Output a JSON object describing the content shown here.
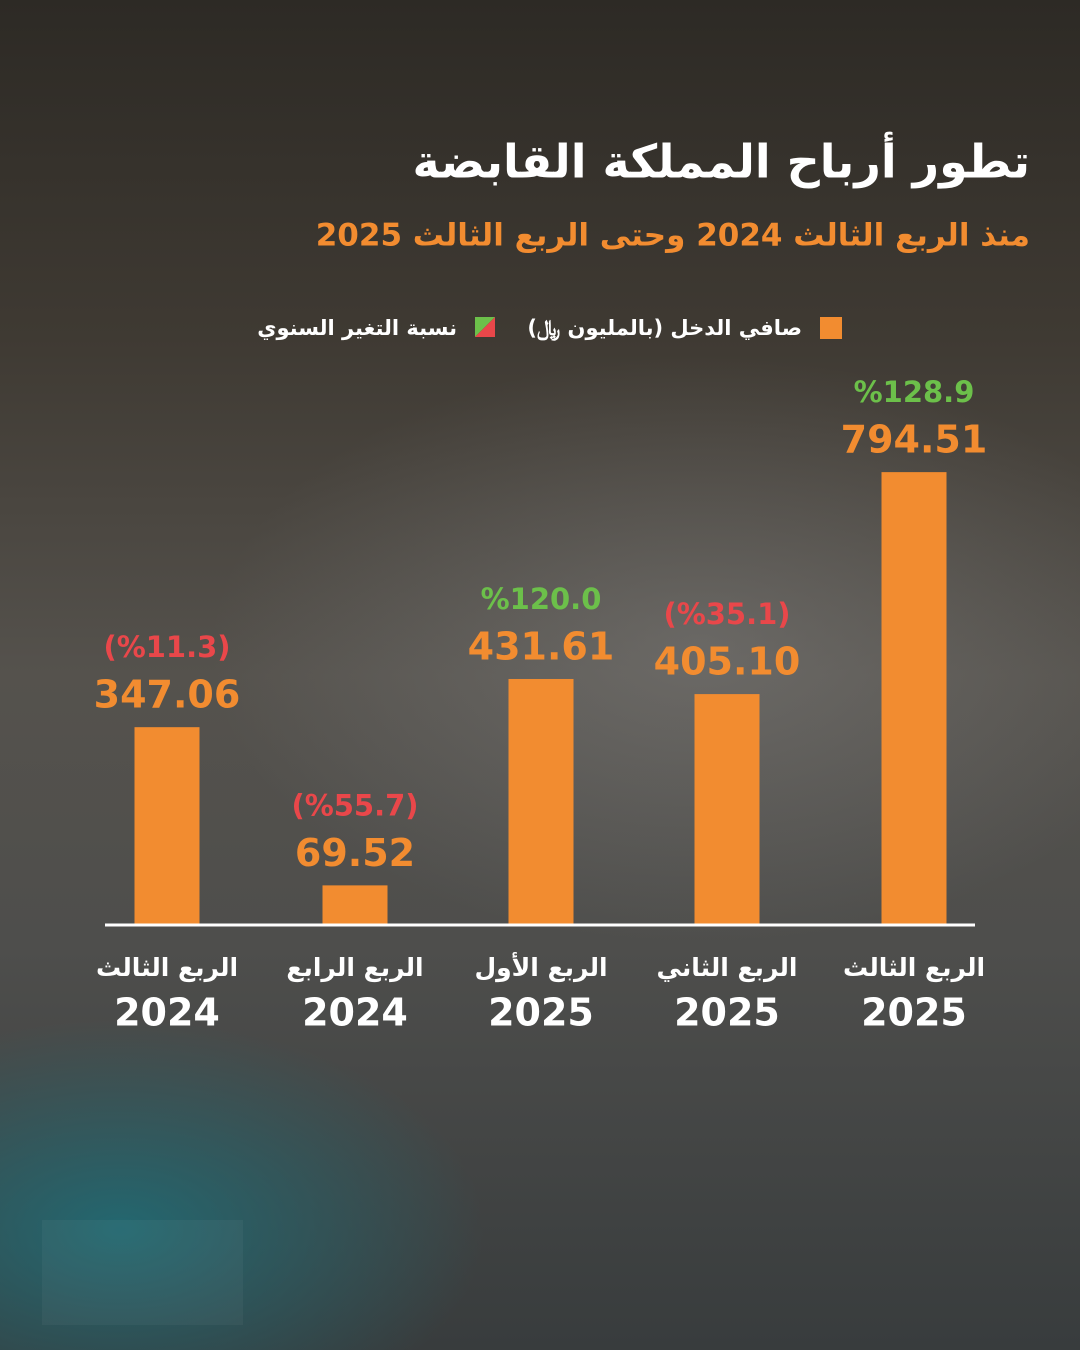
{
  "chart_data": {
    "type": "bar",
    "title": "تطور أرباح المملكة القابضة",
    "subtitle": "منذ الربع الثالث 2024 وحتى الربع الثالث 2025",
    "categories": [
      [
        "الربع الثالث",
        "2024"
      ],
      [
        "الربع الرابع",
        "2024"
      ],
      [
        "الربع الأول",
        "2025"
      ],
      [
        "الربع الثاني",
        "2025"
      ],
      [
        "الربع الثالث",
        "2025"
      ]
    ],
    "series": [
      {
        "name": "صافي الدخل (بالمليون ﷼)",
        "color": "#f28c30",
        "values": [
          347.06,
          69.52,
          431.61,
          405.1,
          794.51
        ],
        "value_labels": [
          "347.06",
          "69.52",
          "431.61",
          "405.10",
          "794.51"
        ]
      },
      {
        "name": "نسبة التغير السنوي",
        "colors": {
          "up": "#6cc04a",
          "down": "#e9474a"
        },
        "values": [
          -11.3,
          -55.7,
          120.0,
          -35.1,
          128.9
        ],
        "value_labels": [
          "(%11.3)",
          "(%55.7)",
          "%120.0",
          "(%35.1)",
          "%128.9"
        ]
      }
    ],
    "ylim": [
      0,
      800
    ]
  }
}
